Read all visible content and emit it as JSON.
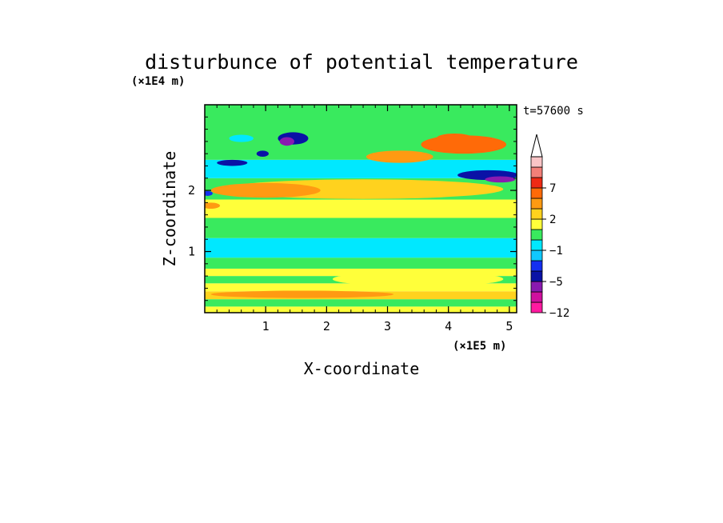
{
  "chart_data": {
    "type": "heatmap",
    "title": "disturbunce of potential temperature",
    "subtitle": "t=57600 s",
    "xlabel": "X-coordinate",
    "ylabel": "Z-coordinate",
    "x_unit": "(×1E5 m)",
    "y_unit": "(×1E4 m)",
    "xlim": [
      0,
      5.12
    ],
    "ylim": [
      0,
      3.4
    ],
    "x_ticks": [
      1,
      2,
      3,
      4,
      5
    ],
    "y_ticks": [
      1,
      2
    ],
    "colorbar": {
      "levels": [
        -12,
        -10,
        -8,
        -5,
        -3,
        -2,
        -1,
        0,
        1,
        2,
        3,
        5,
        7,
        9,
        11
      ],
      "colors": [
        "#ff1aa0",
        "#d0109e",
        "#8a1ab0",
        "#0a12a6",
        "#1430f0",
        "#10c8ff",
        "#00e8ff",
        "#39ea5e",
        "#ffff3a",
        "#ffd21e",
        "#ff9a12",
        "#ff6a08",
        "#ee2a14",
        "#f27f78",
        "#f9c4c6"
      ],
      "labels": [
        {
          "value": -12,
          "text": "−12"
        },
        {
          "value": -5,
          "text": "−5"
        },
        {
          "value": -1,
          "text": "−1"
        },
        {
          "value": 2,
          "text": "2"
        },
        {
          "value": 7,
          "text": "7"
        }
      ],
      "extend": "max"
    },
    "layers": [
      {
        "z": [
          0.0,
          0.1
        ],
        "value": 1.5
      },
      {
        "z": [
          0.1,
          0.22
        ],
        "value": 0.5
      },
      {
        "z": [
          0.22,
          0.35
        ],
        "value": 2.2
      },
      {
        "z": [
          0.35,
          0.48
        ],
        "value": 1.5
      },
      {
        "z": [
          0.48,
          0.6
        ],
        "value": 0.5
      },
      {
        "z": [
          0.6,
          0.72
        ],
        "value": 1.5
      },
      {
        "z": [
          0.72,
          0.9
        ],
        "value": 0.5
      },
      {
        "z": [
          0.9,
          1.22
        ],
        "value": -0.5
      },
      {
        "z": [
          1.22,
          1.55
        ],
        "value": 0.5
      },
      {
        "z": [
          1.55,
          1.85
        ],
        "value": 1.5
      },
      {
        "z": [
          1.85,
          2.2
        ],
        "value": 0.5
      },
      {
        "z": [
          2.2,
          2.5
        ],
        "value": -0.5
      },
      {
        "z": [
          2.5,
          3.4
        ],
        "value": 0.5
      }
    ],
    "features": [
      {
        "x": 2.6,
        "z": 2.02,
        "rx": 2.3,
        "rz": 0.16,
        "value": 2.5
      },
      {
        "x": 1.0,
        "z": 2.0,
        "rx": 0.9,
        "rz": 0.12,
        "value": 4
      },
      {
        "x": 3.2,
        "z": 2.55,
        "rx": 0.55,
        "rz": 0.1,
        "value": 4
      },
      {
        "x": 4.25,
        "z": 2.75,
        "rx": 0.7,
        "rz": 0.15,
        "value": 6
      },
      {
        "x": 4.1,
        "z": 2.85,
        "rx": 0.3,
        "rz": 0.08,
        "value": 5.5
      },
      {
        "x": 4.65,
        "z": 2.25,
        "rx": 0.5,
        "rz": 0.08,
        "value": -4
      },
      {
        "x": 4.85,
        "z": 2.18,
        "rx": 0.25,
        "rz": 0.05,
        "value": -6
      },
      {
        "x": 1.45,
        "z": 2.85,
        "rx": 0.25,
        "rz": 0.1,
        "value": -4
      },
      {
        "x": 1.35,
        "z": 2.8,
        "rx": 0.12,
        "rz": 0.07,
        "value": -6
      },
      {
        "x": 0.45,
        "z": 2.45,
        "rx": 0.25,
        "rz": 0.05,
        "value": -4
      },
      {
        "x": 0.95,
        "z": 2.6,
        "rx": 0.1,
        "rz": 0.05,
        "value": -5
      },
      {
        "x": 0.6,
        "z": 2.85,
        "rx": 0.2,
        "rz": 0.06,
        "value": -0.5
      },
      {
        "x": 0.05,
        "z": 1.95,
        "rx": 0.08,
        "rz": 0.04,
        "value": -3
      },
      {
        "x": 0.1,
        "z": 1.75,
        "rx": 0.15,
        "rz": 0.05,
        "value": 4
      },
      {
        "x": 3.5,
        "z": 0.55,
        "rx": 1.4,
        "rz": 0.12,
        "value": 1.5
      },
      {
        "x": 1.6,
        "z": 0.3,
        "rx": 1.5,
        "rz": 0.06,
        "value": 3
      }
    ]
  }
}
